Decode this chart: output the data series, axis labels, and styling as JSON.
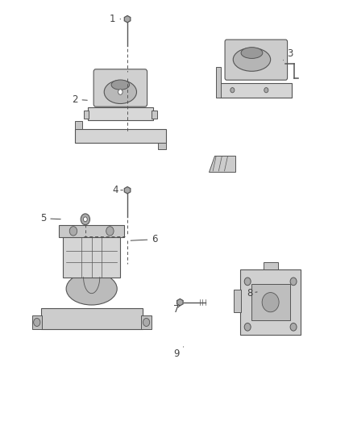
{
  "bg_color": "#ffffff",
  "line_color": "#555555",
  "label_color": "#444444",
  "fig_width": 4.38,
  "fig_height": 5.33,
  "dpi": 100,
  "label_fontsize": 8.5
}
